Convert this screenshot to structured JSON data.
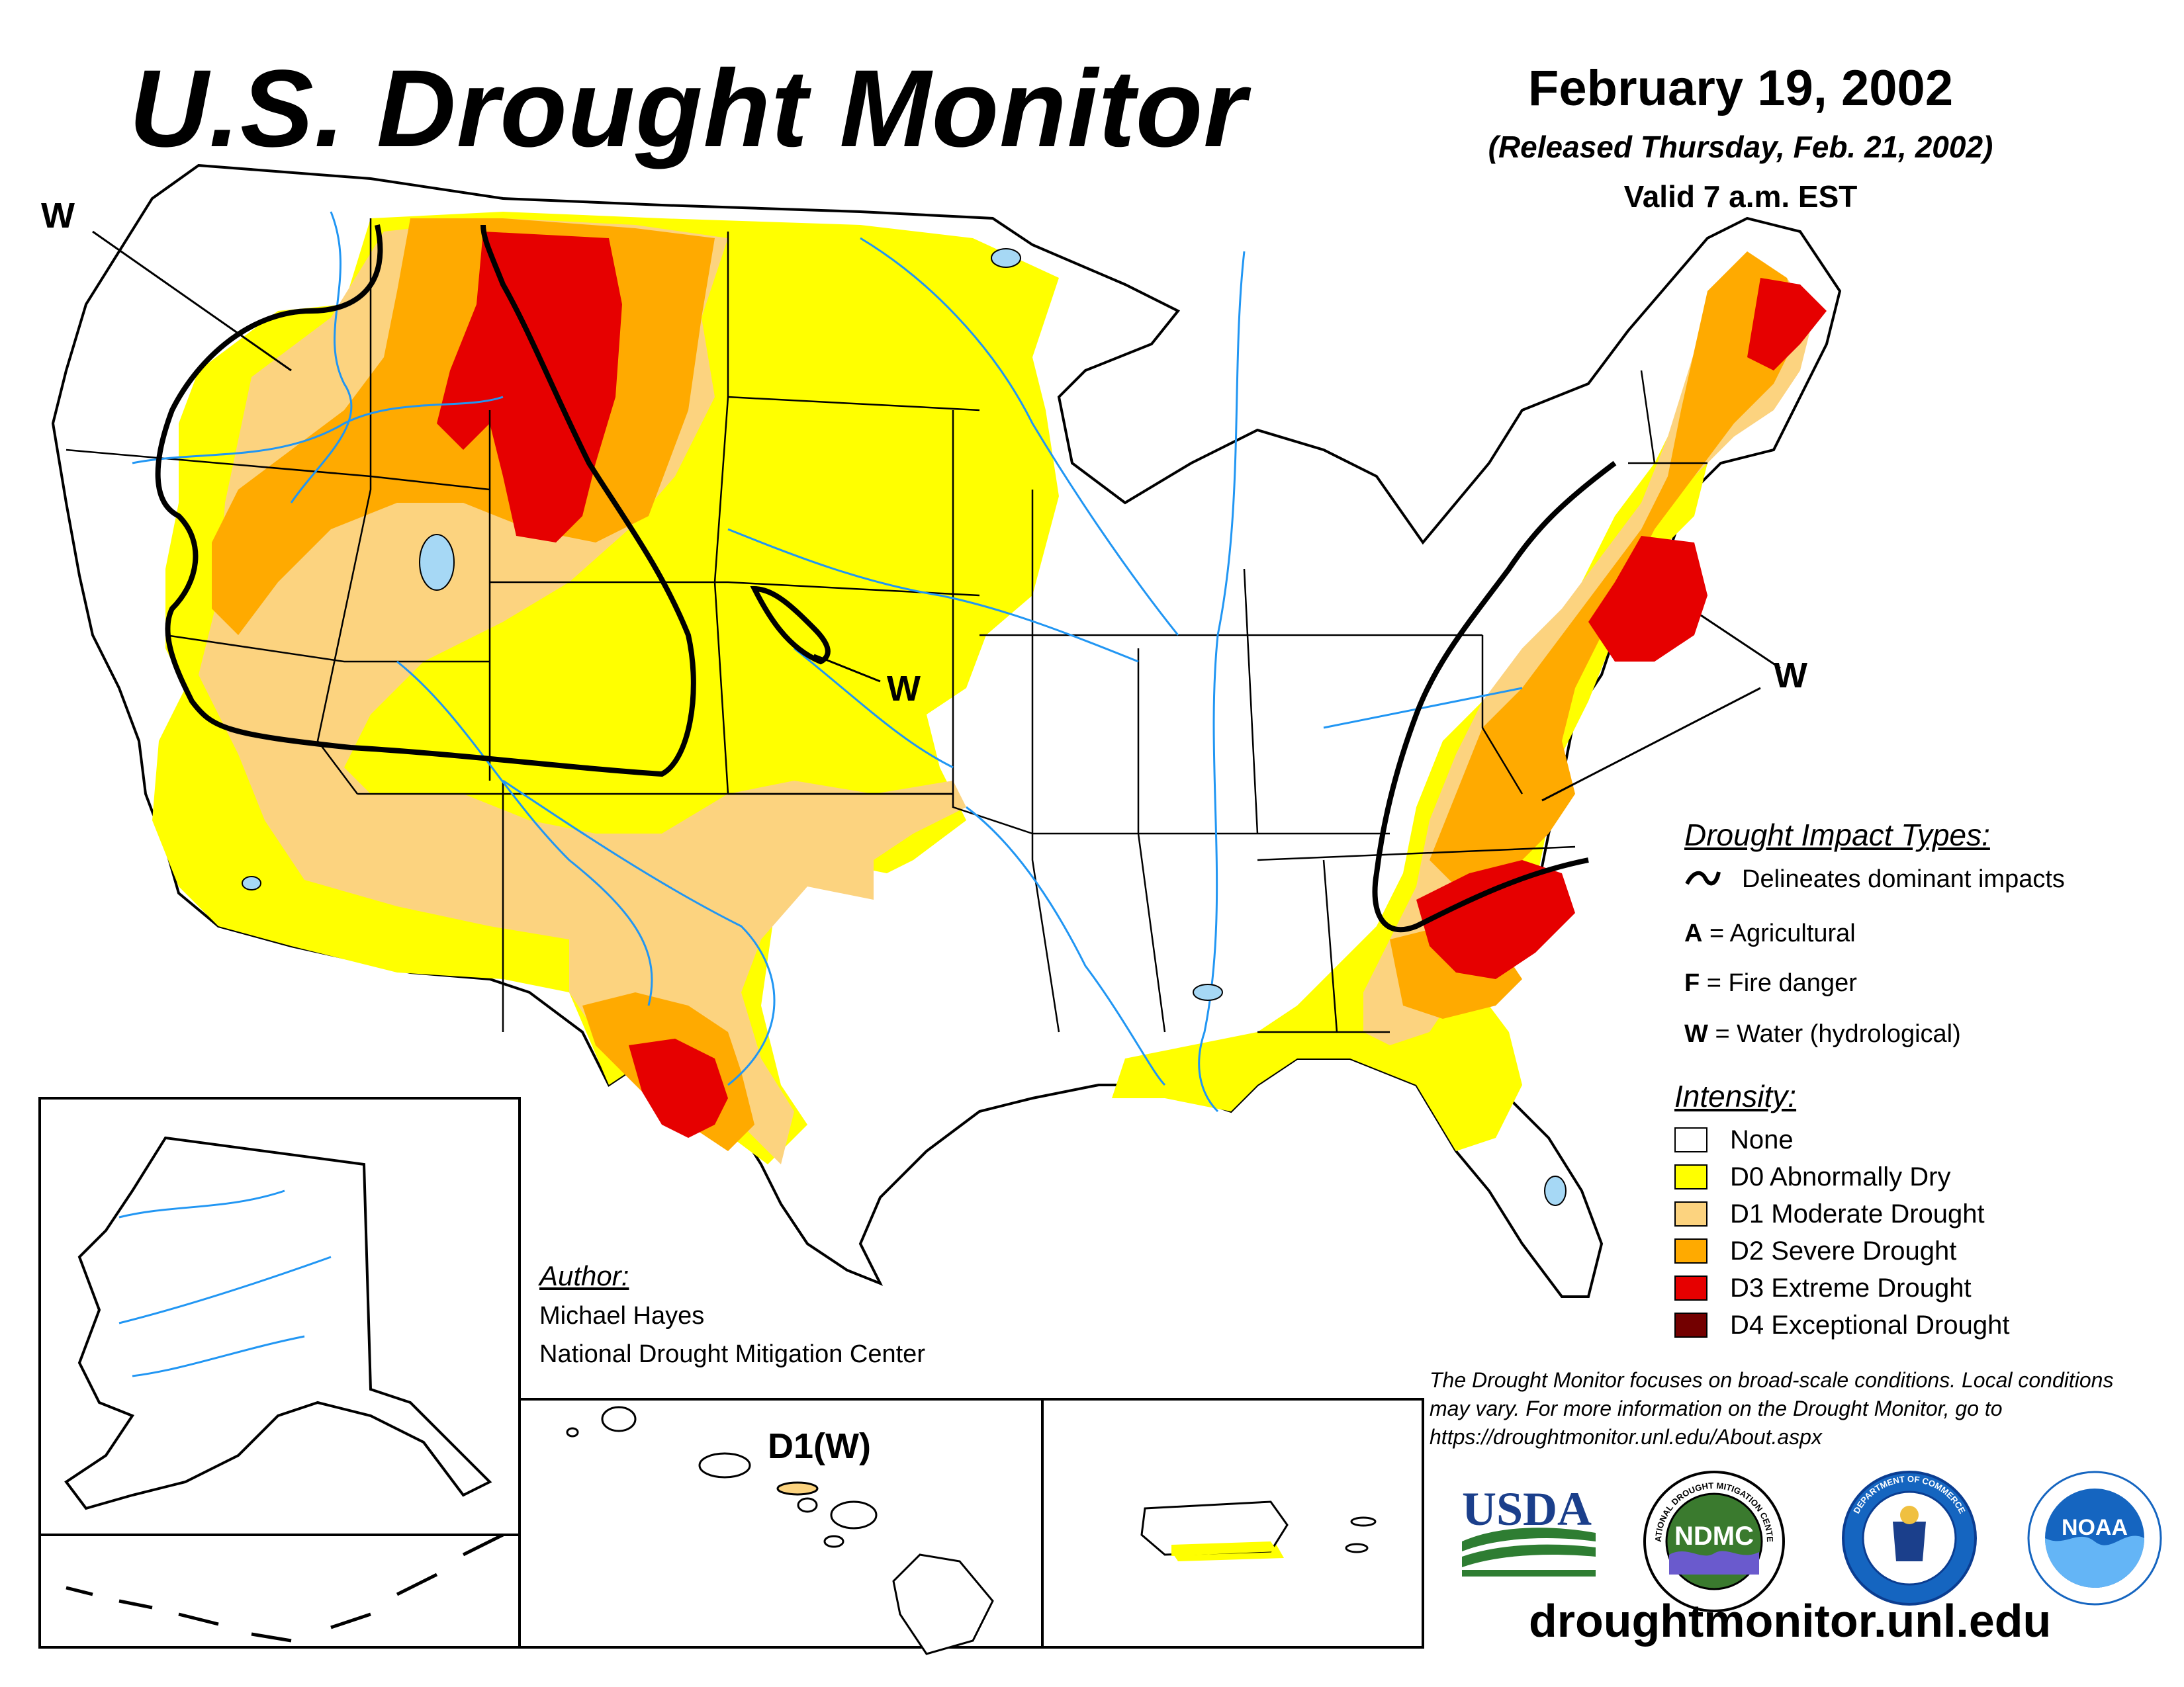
{
  "title": "U.S. Drought Monitor",
  "map_date": "February 19, 2002",
  "released": "(Released Thursday, Feb. 21, 2002)",
  "valid": "Valid 7 a.m. EST",
  "impact_labels": {
    "west_coast": "W",
    "kansas": "W",
    "northeast": "W",
    "hawaii": "D1(W)"
  },
  "impact_types": {
    "heading": "Drought Impact Types:",
    "delineates": "Delineates dominant impacts",
    "items": [
      {
        "code": "A",
        "label": "= Agricultural"
      },
      {
        "code": "F",
        "label": "= Fire danger"
      },
      {
        "code": "W",
        "label": "= Water (hydrological)"
      }
    ]
  },
  "intensity": {
    "heading": "Intensity:",
    "levels": [
      {
        "label": "None",
        "color": "#ffffff"
      },
      {
        "label": "D0 Abnormally Dry",
        "color": "#ffff00"
      },
      {
        "label": "D1 Moderate Drought",
        "color": "#fcd37f"
      },
      {
        "label": "D2 Severe Drought",
        "color": "#ffaa00"
      },
      {
        "label": "D3 Extreme Drought",
        "color": "#e60000"
      },
      {
        "label": "D4 Exceptional Drought",
        "color": "#730000"
      }
    ]
  },
  "author": {
    "heading": "Author:",
    "name": "Michael Hayes",
    "org": "National Drought Mitigation Center"
  },
  "disclaimer": "The Drought Monitor focuses on broad-scale conditions. Local conditions may vary. For more information on the Drought Monitor, go to https://droughtmonitor.unl.edu/About.aspx",
  "logos": {
    "usda": "USDA",
    "ndmc": "NDMC",
    "ndmc_ring": "NATIONAL DROUGHT MITIGATION CENTER",
    "commerce_ring": "DEPARTMENT OF COMMERCE",
    "noaa": "NOAA"
  },
  "website": "droughtmonitor.unl.edu",
  "colors": {
    "water": "#2196f3",
    "lake": "#a6d8f5",
    "usda_blue": "#1b3f8b",
    "usda_green": "#2e7d32",
    "ndmc_green": "#3a7a2e",
    "noaa_blue": "#1565c0"
  }
}
